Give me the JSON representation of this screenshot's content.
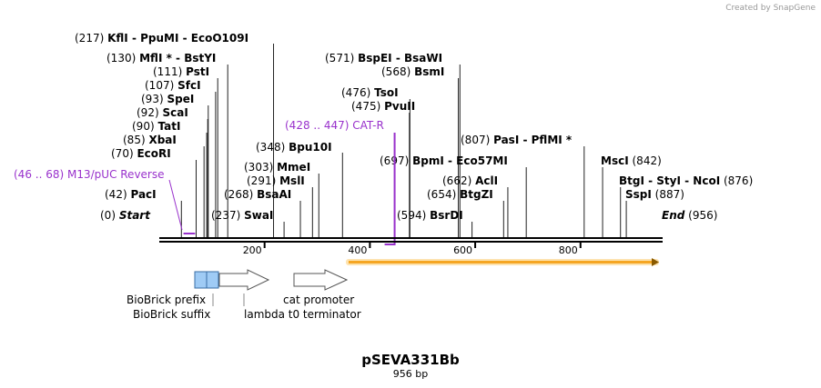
{
  "credit": "Created by SnapGene",
  "plasmid": {
    "name": "pSEVA331Bb",
    "length_label": "956 bp"
  },
  "ends": {
    "start": {
      "pos": "(0)",
      "name": "Start"
    },
    "end": {
      "pos": "(956)",
      "name": "End"
    }
  },
  "enzymes": [
    {
      "pos": "(217)",
      "name": "KflI",
      "extra": [
        " - PpuMI",
        " - EcoO109I"
      ]
    },
    {
      "pos": "(130)",
      "name": "MflI *",
      "extra": [
        " - BstYI"
      ]
    },
    {
      "pos": "(111)",
      "name": "PstI",
      "extra": []
    },
    {
      "pos": "(107)",
      "name": "SfcI",
      "extra": []
    },
    {
      "pos": "(93)",
      "name": "SpeI",
      "extra": []
    },
    {
      "pos": "(92)",
      "name": "ScaI",
      "extra": []
    },
    {
      "pos": "(90)",
      "name": "TatI",
      "extra": []
    },
    {
      "pos": "(85)",
      "name": "XbaI",
      "extra": []
    },
    {
      "pos": "(70)",
      "name": "EcoRI",
      "extra": []
    },
    {
      "pos": "(42)",
      "name": "PacI",
      "extra": []
    },
    {
      "pos": "(571)",
      "name": "BspEI",
      "extra": [
        " - BsaWI"
      ]
    },
    {
      "pos": "(568)",
      "name": "BsmI",
      "extra": []
    },
    {
      "pos": "(476)",
      "name": "TsoI",
      "extra": []
    },
    {
      "pos": "(475)",
      "name": "PvuII",
      "extra": []
    },
    {
      "pos": "(348)",
      "name": "Bpu10I",
      "extra": []
    },
    {
      "pos": "(303)",
      "name": "MmeI",
      "extra": []
    },
    {
      "pos": "(291)",
      "name": "MslI",
      "extra": []
    },
    {
      "pos": "(268)",
      "name": "BsaAI",
      "extra": []
    },
    {
      "pos": "(237)",
      "name": "SwaI",
      "extra": []
    },
    {
      "pos": "(807)",
      "name": "PasI",
      "extra": [
        " - PflMI *"
      ]
    },
    {
      "pos": "(697)",
      "name": "BpmI",
      "extra": [
        " - Eco57MI"
      ]
    },
    {
      "pos": "(662)",
      "name": "AclI",
      "extra": []
    },
    {
      "pos": "(654)",
      "name": "BtgZI",
      "extra": []
    },
    {
      "pos": "(594)",
      "name": "BsrDI",
      "extra": []
    },
    {
      "pos": "(842)",
      "name": "MscI",
      "extra": [],
      "pos_after": true
    },
    {
      "pos": "(876)",
      "name": "BtgI",
      "extra": [
        " - StyI",
        " - NcoI"
      ],
      "pos_after": true
    },
    {
      "pos": "(887)",
      "name": "SspI",
      "extra": [],
      "pos_after": true
    }
  ],
  "primers": [
    {
      "range": "(46 .. 68)",
      "name": "M13/pUC Reverse",
      "start": 46,
      "end": 68
    },
    {
      "range": "(428 .. 447)",
      "name": "CAT-R",
      "start": 428,
      "end": 447
    }
  ],
  "axis": {
    "min": 0,
    "max": 956,
    "ticks": [
      200,
      400,
      600,
      800
    ]
  },
  "features": [
    {
      "name": "BioBrick prefix"
    },
    {
      "name": "BioBrick suffix"
    },
    {
      "name": "cat promoter"
    },
    {
      "name": "lambda t0 terminator"
    }
  ],
  "colors": {
    "primer": "#9932cc",
    "biobrick": "#9fcbf5",
    "orf_fill": "#f5a623",
    "orf_glow": "#fde3b0",
    "line": "#000000"
  }
}
